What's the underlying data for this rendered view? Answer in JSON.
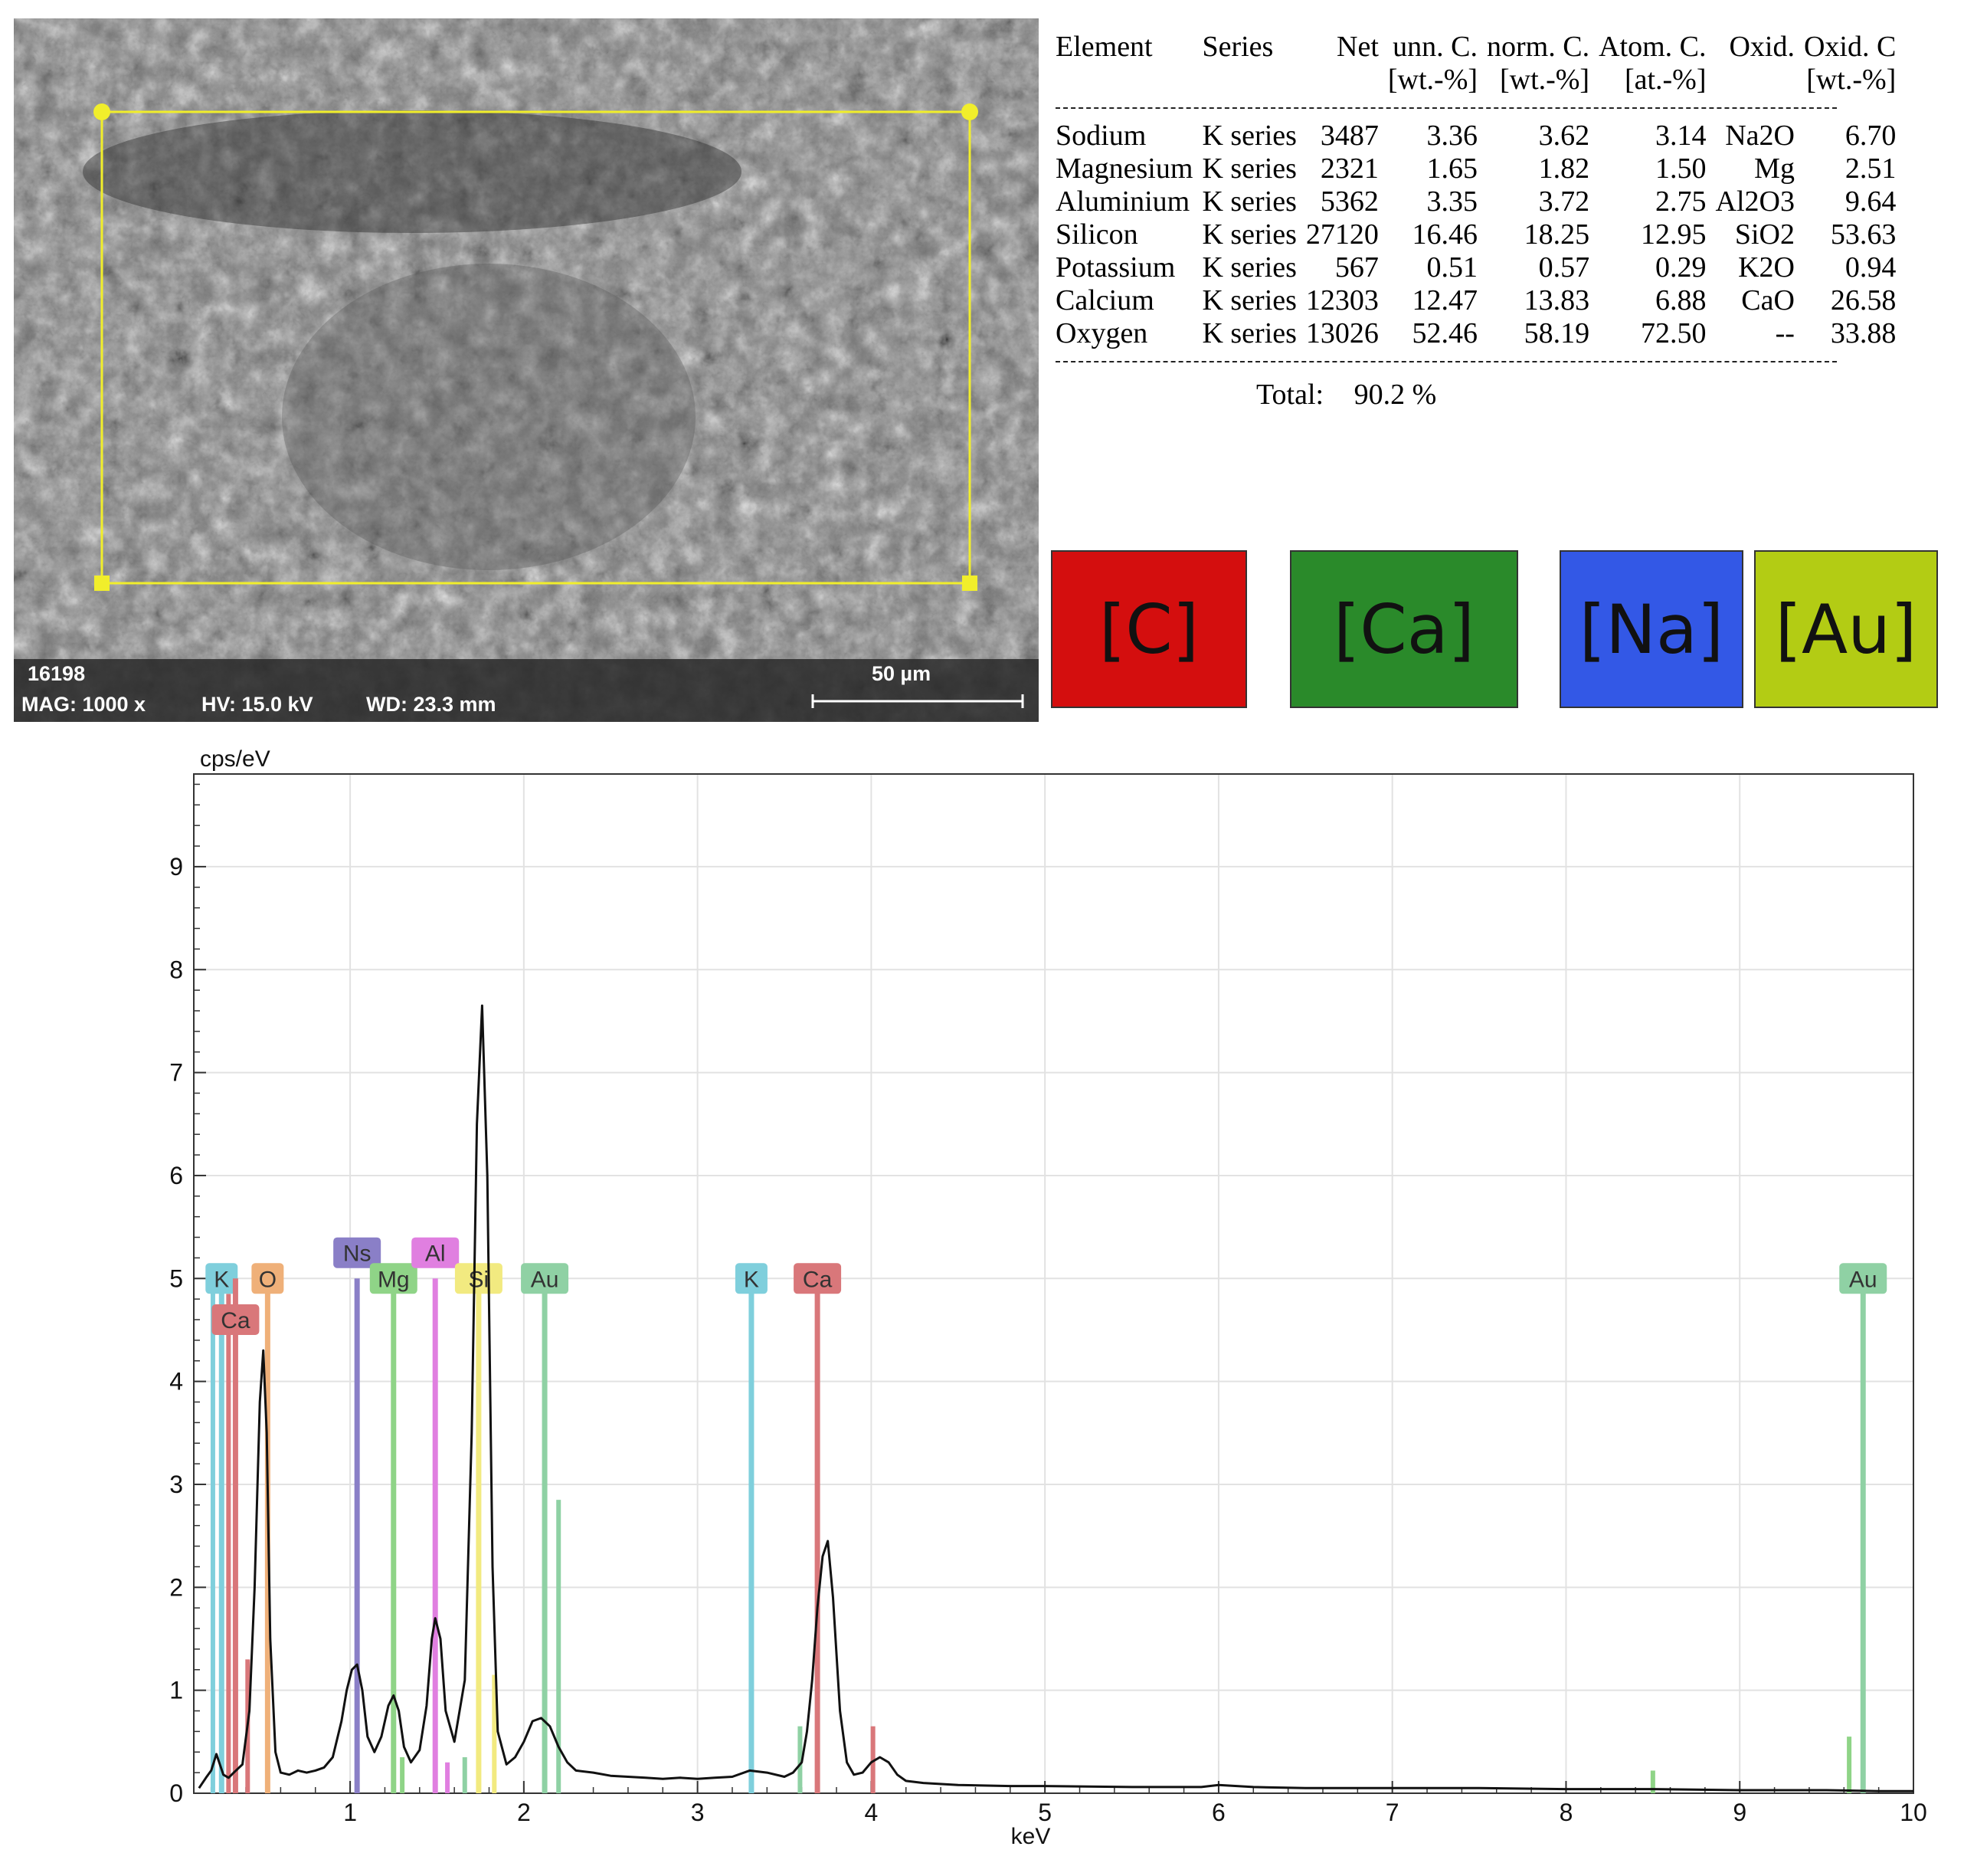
{
  "sem_image": {
    "sample_id": "16198",
    "mag": "MAG: 1000 x",
    "hv": "HV: 15.0 kV",
    "wd": "WD: 23.3 mm",
    "scale_bar": "50 µm"
  },
  "results_table": {
    "headers": [
      "Element",
      "Series",
      "Net",
      "unn. C.",
      "norm. C.",
      "Atom. C.",
      "Oxid.",
      "Oxid. C"
    ],
    "units": [
      "",
      "",
      "",
      "[wt.-%]",
      "[wt.-%]",
      "[at.-%]",
      "",
      "[wt.-%]"
    ],
    "rows": [
      [
        "Sodium",
        "K series",
        "3487",
        "3.36",
        "3.62",
        "3.14",
        "Na2O",
        "6.70"
      ],
      [
        "Magnesium",
        "K series",
        "2321",
        "1.65",
        "1.82",
        "1.50",
        "Mg",
        "2.51"
      ],
      [
        "Aluminium",
        "K series",
        "5362",
        "3.35",
        "3.72",
        "2.75",
        "Al2O3",
        "9.64"
      ],
      [
        "Silicon",
        "K series",
        "27120",
        "16.46",
        "18.25",
        "12.95",
        "SiO2",
        "53.63"
      ],
      [
        "Potassium",
        "K series",
        "567",
        "0.51",
        "0.57",
        "0.29",
        "K2O",
        "0.94"
      ],
      [
        "Calcium",
        "K series",
        "12303",
        "12.47",
        "13.83",
        "6.88",
        "CaO",
        "26.58"
      ],
      [
        "Oxygen",
        "K series",
        "13026",
        "52.46",
        "58.19",
        "72.50",
        "--",
        "33.88"
      ]
    ],
    "total_label": "Total:",
    "total_value": "90.2 %"
  },
  "element_maps": [
    {
      "label": "[C]",
      "color": "#d40e0e"
    },
    {
      "label": "[Ca]",
      "color": "#2a8a2a"
    },
    {
      "label": "[Na]",
      "color": "#3358e6"
    },
    {
      "label": "[Au]",
      "color": "#b3cc14"
    }
  ],
  "chart_data": {
    "type": "line",
    "xlabel": "keV",
    "ylabel": "cps/eV",
    "xlim": [
      0.1,
      10
    ],
    "ylim": [
      0,
      9.9
    ],
    "xticks": [
      1,
      2,
      3,
      4,
      5,
      6,
      7,
      8,
      9,
      10
    ],
    "yticks": [
      0,
      1,
      2,
      3,
      4,
      5,
      6,
      7,
      8,
      9
    ],
    "grid": true,
    "series": [
      {
        "x": [
          0.13,
          0.17,
          0.2,
          0.23,
          0.27,
          0.3,
          0.33,
          0.38,
          0.42,
          0.45,
          0.48,
          0.5,
          0.52,
          0.54,
          0.57,
          0.6,
          0.65,
          0.7,
          0.75,
          0.8,
          0.85,
          0.9,
          0.95,
          0.98,
          1.01,
          1.04,
          1.07,
          1.1,
          1.14,
          1.18,
          1.22,
          1.25,
          1.28,
          1.31,
          1.35,
          1.4,
          1.44,
          1.47,
          1.49,
          1.52,
          1.55,
          1.6,
          1.66,
          1.7,
          1.73,
          1.76,
          1.79,
          1.82,
          1.85,
          1.9,
          1.95,
          2.0,
          2.05,
          2.1,
          2.15,
          2.2,
          2.25,
          2.3,
          2.4,
          2.5,
          2.6,
          2.7,
          2.8,
          2.9,
          3.0,
          3.1,
          3.2,
          3.3,
          3.4,
          3.5,
          3.55,
          3.6,
          3.63,
          3.66,
          3.69,
          3.72,
          3.75,
          3.78,
          3.82,
          3.86,
          3.9,
          3.95,
          4.0,
          4.05,
          4.1,
          4.15,
          4.2,
          4.3,
          4.5,
          4.8,
          5.0,
          5.5,
          5.9,
          6.0,
          6.2,
          6.5,
          7.0,
          7.5,
          8.0,
          8.5,
          9.0,
          9.5,
          9.8,
          10.0
        ],
        "y": [
          0.05,
          0.15,
          0.22,
          0.38,
          0.18,
          0.15,
          0.2,
          0.28,
          0.8,
          2.0,
          3.8,
          4.3,
          3.5,
          1.5,
          0.4,
          0.2,
          0.18,
          0.22,
          0.2,
          0.22,
          0.25,
          0.35,
          0.7,
          1.0,
          1.2,
          1.25,
          1.0,
          0.55,
          0.4,
          0.55,
          0.85,
          0.95,
          0.8,
          0.45,
          0.3,
          0.42,
          0.85,
          1.5,
          1.7,
          1.5,
          0.8,
          0.5,
          1.1,
          3.5,
          6.5,
          7.65,
          6.0,
          2.2,
          0.6,
          0.28,
          0.35,
          0.5,
          0.7,
          0.73,
          0.65,
          0.45,
          0.3,
          0.22,
          0.2,
          0.17,
          0.16,
          0.15,
          0.14,
          0.15,
          0.14,
          0.15,
          0.16,
          0.22,
          0.2,
          0.16,
          0.2,
          0.3,
          0.6,
          1.1,
          1.8,
          2.3,
          2.45,
          1.9,
          0.8,
          0.3,
          0.18,
          0.2,
          0.3,
          0.35,
          0.3,
          0.18,
          0.12,
          0.1,
          0.08,
          0.07,
          0.07,
          0.06,
          0.06,
          0.08,
          0.06,
          0.05,
          0.05,
          0.05,
          0.04,
          0.04,
          0.03,
          0.03,
          0.02,
          0.02
        ]
      }
    ],
    "markers": [
      {
        "label": "K",
        "x": 0.26,
        "height": 5.0,
        "color": "#7fcfdc",
        "label_y": 5.0
      },
      {
        "label": "Ca",
        "x": 0.34,
        "height": 5.0,
        "color": "#d9777a",
        "label_y": 4.6
      },
      {
        "label": "O",
        "x": 0.525,
        "height": 5.0,
        "color": "#efb079",
        "label_y": 5.0
      },
      {
        "label": "Ns",
        "x": 1.04,
        "height": 5.0,
        "color": "#8a7fc7",
        "label_y": 5.25
      },
      {
        "label": "Mg",
        "x": 1.25,
        "height": 5.0,
        "color": "#8fd487",
        "label_y": 5.0
      },
      {
        "label": "Al",
        "x": 1.49,
        "height": 5.0,
        "color": "#e07fe0",
        "label_y": 5.25
      },
      {
        "label": "Si",
        "x": 1.74,
        "height": 5.0,
        "color": "#f2ea80",
        "label_y": 5.0
      },
      {
        "label": "Au",
        "x": 2.12,
        "height": 5.0,
        "color": "#8fd1a4",
        "label_y": 5.0
      },
      {
        "label": "K",
        "x": 3.31,
        "height": 5.0,
        "color": "#7fcfdc",
        "label_y": 5.0
      },
      {
        "label": "Ca",
        "x": 3.69,
        "height": 5.0,
        "color": "#d9777a",
        "label_y": 5.0
      },
      {
        "label": "Au",
        "x": 9.71,
        "height": 5.0,
        "color": "#8fd1a4",
        "label_y": 5.0
      }
    ],
    "minor_lines": [
      {
        "x": 0.21,
        "height": 4.9,
        "color": "#7fcfdc"
      },
      {
        "x": 0.3,
        "height": 4.85,
        "color": "#d9777a"
      },
      {
        "x": 0.34,
        "height": 0.6,
        "color": "#8a7fc7"
      },
      {
        "x": 0.41,
        "height": 1.3,
        "color": "#d9777a"
      },
      {
        "x": 1.3,
        "height": 0.35,
        "color": "#8fd487"
      },
      {
        "x": 1.56,
        "height": 0.3,
        "color": "#e07fe0"
      },
      {
        "x": 1.66,
        "height": 0.35,
        "color": "#8fd1a4"
      },
      {
        "x": 1.83,
        "height": 1.15,
        "color": "#f2ea80"
      },
      {
        "x": 2.2,
        "height": 2.85,
        "color": "#8fd1a4"
      },
      {
        "x": 3.59,
        "height": 0.65,
        "color": "#8fd1a4"
      },
      {
        "x": 4.01,
        "height": 0.65,
        "color": "#d9777a"
      },
      {
        "x": 8.5,
        "height": 0.22,
        "color": "#8fd487"
      },
      {
        "x": 9.63,
        "height": 0.55,
        "color": "#8fd487"
      }
    ]
  }
}
